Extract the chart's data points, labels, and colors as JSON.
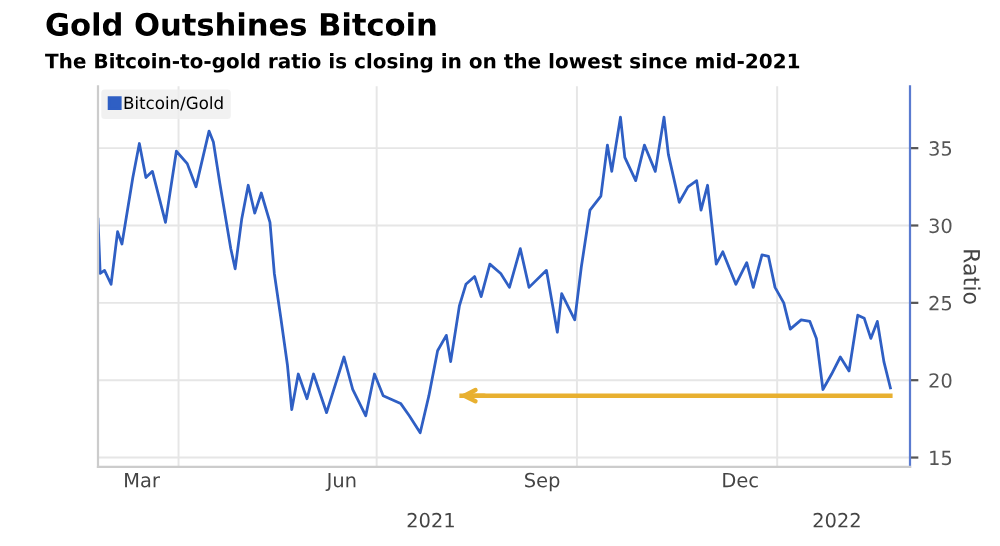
{
  "chart_data": {
    "type": "line",
    "title": "Gold Outshines Bitcoin",
    "subtitle": "The Bitcoin-to-gold ratio is closing in on the lowest since mid-2021",
    "ylabel": "Ratio",
    "xlim": [
      "2021-02-23",
      "2022-03-03"
    ],
    "ylim": [
      14.4,
      39
    ],
    "yticks": [
      15,
      20,
      25,
      30,
      35
    ],
    "xticks": [
      {
        "value": "2021-03-15",
        "label": "Mar"
      },
      {
        "value": "2021-04-01",
        "label": null
      },
      {
        "value": "2021-06-15",
        "label": "Jun"
      },
      {
        "value": "2021-07-01",
        "label": null
      },
      {
        "value": "2021-09-15",
        "label": "Sep"
      },
      {
        "value": "2021-10-01",
        "label": null
      },
      {
        "value": "2021-12-15",
        "label": "Dec"
      },
      {
        "value": "2022-01-01",
        "label": null
      }
    ],
    "annotations": [
      "2021",
      "2022"
    ],
    "grid": true,
    "legend": "top left",
    "series": [
      {
        "name": "Bitcoin/Gold",
        "color": "#2f5fc4",
        "x": [
          "2021-02-23",
          "2021-02-24",
          "2021-02-26",
          "2021-03-01",
          "2021-03-04",
          "2021-03-06",
          "2021-03-11",
          "2021-03-14",
          "2021-03-17",
          "2021-03-20",
          "2021-03-26",
          "2021-03-31",
          "2021-04-05",
          "2021-04-09",
          "2021-04-15",
          "2021-04-17",
          "2021-04-20",
          "2021-04-25",
          "2021-04-27",
          "2021-04-30",
          "2021-05-03",
          "2021-05-06",
          "2021-05-09",
          "2021-05-13",
          "2021-05-15",
          "2021-05-18",
          "2021-05-21",
          "2021-05-23",
          "2021-05-26",
          "2021-05-30",
          "2021-06-02",
          "2021-06-08",
          "2021-06-16",
          "2021-06-20",
          "2021-06-26",
          "2021-06-30",
          "2021-07-04",
          "2021-07-12",
          "2021-07-16",
          "2021-07-21",
          "2021-07-25",
          "2021-07-29",
          "2021-08-02",
          "2021-08-04",
          "2021-08-08",
          "2021-08-11",
          "2021-08-15",
          "2021-08-18",
          "2021-08-22",
          "2021-08-27",
          "2021-08-31",
          "2021-09-05",
          "2021-09-09",
          "2021-09-17",
          "2021-09-22",
          "2021-09-24",
          "2021-09-30",
          "2021-10-03",
          "2021-10-07",
          "2021-10-12",
          "2021-10-15",
          "2021-10-17",
          "2021-10-21",
          "2021-10-23",
          "2021-10-28",
          "2021-11-01",
          "2021-11-06",
          "2021-11-10",
          "2021-11-12",
          "2021-11-17",
          "2021-11-21",
          "2021-11-25",
          "2021-11-27",
          "2021-11-30",
          "2021-12-04",
          "2021-12-07",
          "2021-12-13",
          "2021-12-18",
          "2021-12-21",
          "2021-12-25",
          "2021-12-28",
          "2021-12-31",
          "2022-01-04",
          "2022-01-07",
          "2022-01-12",
          "2022-01-16",
          "2022-01-19",
          "2022-01-22",
          "2022-01-26",
          "2022-01-30",
          "2022-02-03",
          "2022-02-07",
          "2022-02-10",
          "2022-02-13",
          "2022-02-16",
          "2022-02-19",
          "2022-02-22"
        ],
        "values": [
          30.4,
          26.9,
          27.1,
          26.2,
          29.6,
          28.8,
          33.1,
          35.3,
          33.1,
          33.5,
          30.2,
          34.8,
          34.0,
          32.5,
          36.1,
          35.4,
          32.7,
          28.5,
          27.2,
          30.4,
          32.6,
          30.8,
          32.1,
          30.2,
          26.9,
          24.0,
          21.0,
          18.1,
          20.4,
          18.8,
          20.4,
          17.9,
          21.5,
          19.4,
          17.7,
          20.4,
          19.0,
          18.5,
          17.7,
          16.6,
          19.0,
          21.9,
          22.9,
          21.2,
          24.8,
          26.2,
          26.7,
          25.4,
          27.5,
          26.9,
          26.0,
          28.5,
          26.0,
          27.1,
          23.1,
          25.6,
          23.9,
          27.3,
          31.0,
          31.9,
          35.2,
          33.5,
          37.0,
          34.4,
          32.9,
          35.2,
          33.5,
          37.0,
          34.6,
          31.5,
          32.5,
          32.9,
          31.0,
          32.6,
          27.5,
          28.3,
          26.2,
          27.6,
          26.0,
          28.1,
          28.0,
          26.0,
          25.0,
          23.3,
          23.9,
          23.8,
          22.7,
          19.4,
          20.4,
          21.5,
          20.6,
          24.2,
          24.0,
          22.7,
          23.8,
          21.2,
          19.5
        ]
      },
      {
        "color": "#e8b030",
        "x": [
          "2022-02-23",
          "2021-08-08"
        ],
        "values": [
          19,
          19
        ]
      }
    ]
  }
}
